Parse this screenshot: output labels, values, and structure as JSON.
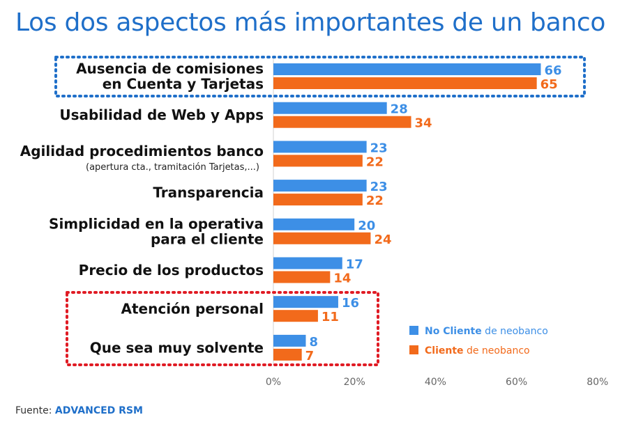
{
  "title": "Los dos aspectos más importantes de un banco",
  "source": {
    "prefix": "Fuente: ",
    "name": "ADVANCED RSM"
  },
  "colors": {
    "no_cliente": "#3d8fe6",
    "cliente": "#f26a1b",
    "title": "#1f6fc9",
    "blue_box": "#1f6fc9",
    "red_box": "#e01b24"
  },
  "chart_data": {
    "type": "bar",
    "orientation": "horizontal",
    "categories": [
      {
        "lines": [
          "Ausencia de comisiones",
          "en Cuenta y Tarjetas"
        ]
      },
      {
        "lines": [
          "Usabilidad de Web y Apps"
        ]
      },
      {
        "lines": [
          "Agilidad procedimientos banco"
        ],
        "sub": "(apertura cta., tramitación Tarjetas,...)"
      },
      {
        "lines": [
          "Transparencia"
        ]
      },
      {
        "lines": [
          "Simplicidad en la operativa",
          "para el cliente"
        ]
      },
      {
        "lines": [
          "Precio de los productos"
        ]
      },
      {
        "lines": [
          "Atención personal"
        ]
      },
      {
        "lines": [
          "Que sea muy solvente"
        ]
      }
    ],
    "series": [
      {
        "key": "no_cliente",
        "values": [
          66,
          28,
          23,
          23,
          20,
          17,
          16,
          8
        ]
      },
      {
        "key": "cliente",
        "values": [
          65,
          34,
          22,
          22,
          24,
          14,
          11,
          7
        ]
      }
    ],
    "xlim": [
      0,
      80
    ],
    "xticks": [
      "0%",
      "20%",
      "40%",
      "60%",
      "80%"
    ],
    "legend": [
      {
        "key": "no_cliente",
        "bold": "No Cliente",
        "rest": " de neobanco"
      },
      {
        "key": "cliente",
        "bold": "Cliente",
        "rest": " de neobanco"
      }
    ],
    "legend_position": "right",
    "highlight_boxes": [
      {
        "style": "blue-dotted",
        "categories": [
          0
        ]
      },
      {
        "style": "red-dotted",
        "categories": [
          6,
          7
        ]
      }
    ]
  }
}
